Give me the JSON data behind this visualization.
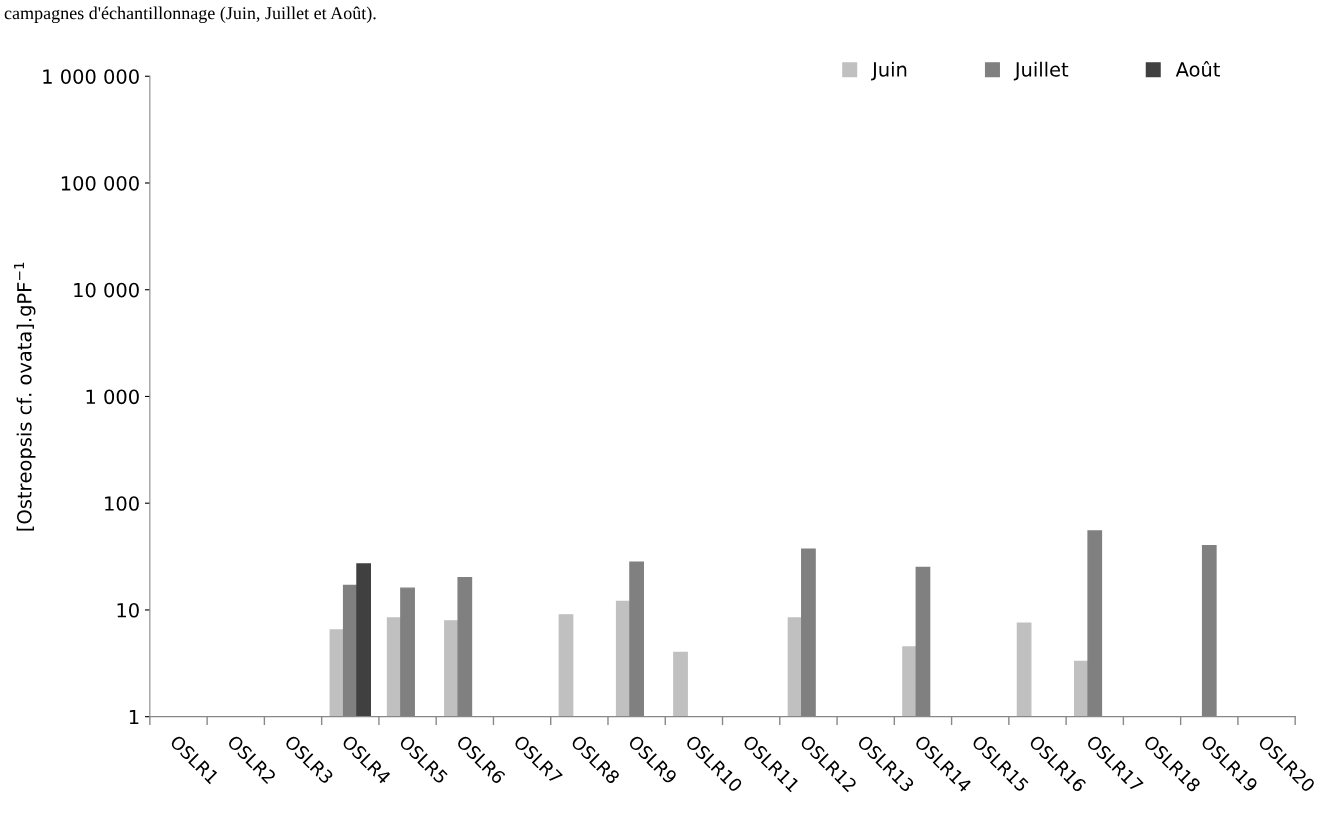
{
  "chart_data": {
    "type": "bar",
    "annotations": [
      "campagnes d'échantillonnage (Juin, Juillet et Août)."
    ],
    "ylabel": "[Ostreopsis cf. ovata].gPF$^{−1}$",
    "categories": [
      "OSLR1",
      "OSLR2",
      "OSLR3",
      "OSLR4",
      "OSLR5",
      "OSLR6",
      "OSLR7",
      "OSLR8",
      "OSLR9",
      "OSLR10",
      "OSLR11",
      "OSLR12",
      "OSLR13",
      "OSLR14",
      "OSLR15",
      "OSLR16",
      "OSLR17",
      "OSLR18",
      "OSLR19",
      "OSLR20"
    ],
    "series": [
      {
        "name": "Juin",
        "color": "#c0c0c0",
        "values": [
          null,
          null,
          null,
          6.5,
          8.4,
          7.9,
          null,
          9,
          12,
          4,
          null,
          8.4,
          null,
          4.5,
          null,
          7.5,
          3.3,
          null,
          null,
          null
        ]
      },
      {
        "name": "Juillet",
        "color": "#808080",
        "values": [
          null,
          null,
          null,
          17,
          16,
          20,
          null,
          null,
          28,
          null,
          null,
          37,
          null,
          25,
          null,
          null,
          55,
          null,
          40,
          null
        ]
      },
      {
        "name": "Août",
        "color": "#404040",
        "values": [
          null,
          null,
          null,
          27,
          null,
          null,
          null,
          null,
          null,
          null,
          null,
          null,
          null,
          null,
          null,
          null,
          null,
          null,
          null,
          null
        ]
      }
    ],
    "log": true,
    "ylim": [
      1,
      1000000
    ],
    "yticks": [
      1,
      10,
      100,
      {
        "value": 1000,
        "label": "1 000"
      },
      {
        "value": 10000,
        "label": "10 000"
      },
      {
        "value": 100000,
        "label": "100 000"
      },
      {
        "value": 1000000,
        "label": "1 000 000"
      }
    ],
    "grid": false,
    "legend": "top right"
  }
}
